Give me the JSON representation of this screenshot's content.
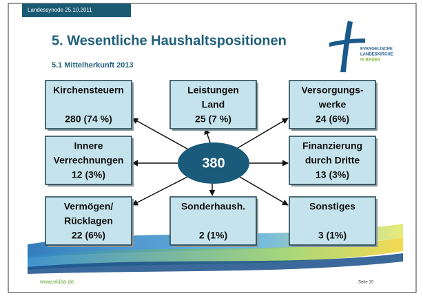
{
  "header": {
    "tag": "Landessynode 25.10.2011",
    "title": "5. Wesentliche Haushaltspositionen",
    "subtitle": "5.1 Mittelherkunft 2013",
    "logo": [
      "EVANGELISCHE",
      "LANDESKIRCHE",
      "IN BADEN"
    ]
  },
  "center": "380",
  "nodes": [
    {
      "lines": [
        "Kirchensteuern"
      ],
      "value": "280 (74 %)"
    },
    {
      "lines": [
        "Leistungen",
        "Land"
      ],
      "value": "25 (7 %)"
    },
    {
      "lines": [
        "Versorgungs-",
        "werke"
      ],
      "value": "24 (6%)"
    },
    {
      "lines": [
        "Innere",
        "Verrechnungen"
      ],
      "value": "12 (3%)"
    },
    {
      "lines": [
        "Finanzierung",
        "durch Dritte"
      ],
      "value": "13 (3%)"
    },
    {
      "lines": [
        "Vermögen/",
        "Rücklagen"
      ],
      "value": "22 (6%)"
    },
    {
      "lines": [
        "Sonderhaush."
      ],
      "value": "2 (1%)"
    },
    {
      "lines": [
        "Sonstiges"
      ],
      "value": "3 (1%)"
    }
  ],
  "footer": {
    "url": "www.ekiba.de",
    "page": "Seite 10"
  }
}
